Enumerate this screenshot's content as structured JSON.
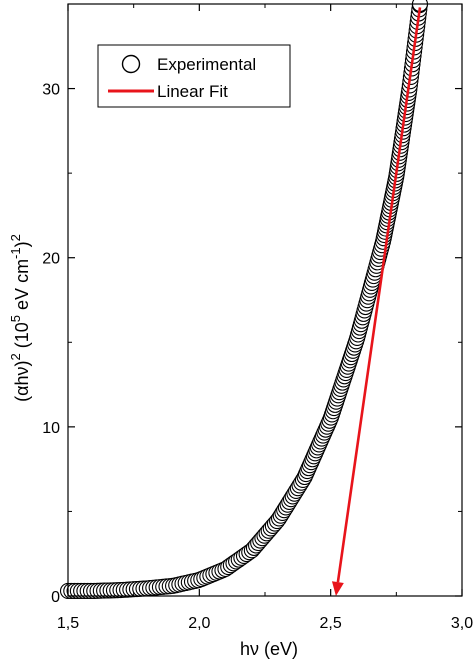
{
  "chart_data": {
    "type": "scatter",
    "title": "",
    "xlabel": "hν (eV)",
    "ylabel_main": "(αhν)",
    "ylabel_main_sup": "2",
    "ylabel_unit_prefix": "(10",
    "ylabel_unit_sup1": "5",
    "ylabel_unit_mid": " eV cm",
    "ylabel_unit_sup2": "-1",
    "ylabel_unit_suffix": ")",
    "ylabel_unit_sup3": "2",
    "xlim": [
      1.5,
      3.0
    ],
    "ylim": [
      0,
      35
    ],
    "x_ticks": [
      "1,5",
      "2,0",
      "2,5",
      "3,0"
    ],
    "x_tick_values": [
      1.5,
      2.0,
      2.5,
      3.0
    ],
    "y_ticks": [
      "0",
      "10",
      "20",
      "30"
    ],
    "y_tick_values": [
      0,
      10,
      20,
      30
    ],
    "grid": false,
    "legend_position": "top-left",
    "series": [
      {
        "name": "Experimental",
        "marker": "open-circle",
        "color": "#000000",
        "curve_points": [
          [
            1.5,
            0.3
          ],
          [
            1.6,
            0.3
          ],
          [
            1.7,
            0.35
          ],
          [
            1.8,
            0.45
          ],
          [
            1.9,
            0.6
          ],
          [
            2.0,
            0.95
          ],
          [
            2.1,
            1.6
          ],
          [
            2.2,
            2.7
          ],
          [
            2.3,
            4.5
          ],
          [
            2.4,
            7.0
          ],
          [
            2.5,
            10.5
          ],
          [
            2.6,
            15.2
          ],
          [
            2.7,
            21.0
          ],
          [
            2.75,
            24.8
          ],
          [
            2.8,
            30.0
          ],
          [
            2.84,
            35.0
          ]
        ]
      },
      {
        "name": "Linear Fit",
        "type": "line",
        "color": "#e8141b",
        "x": [
          2.52,
          2.84
        ],
        "y": [
          0,
          34.8
        ],
        "arrow_at_end": "lower"
      }
    ]
  }
}
